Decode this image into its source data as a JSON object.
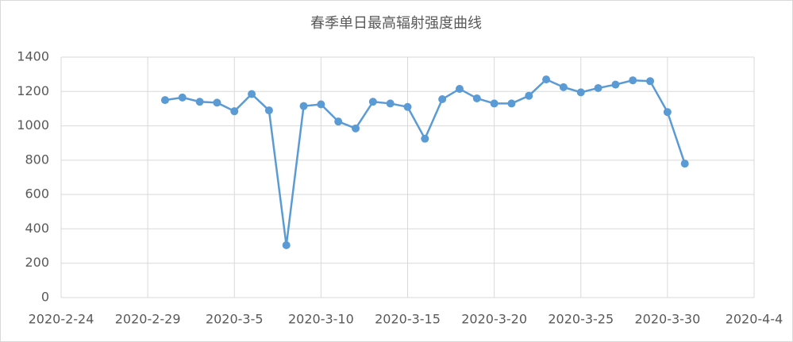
{
  "chart_data": {
    "type": "line",
    "title": "春季单日最高辐射强度曲线",
    "x": [
      "2020-3-1",
      "2020-3-2",
      "2020-3-3",
      "2020-3-4",
      "2020-3-5",
      "2020-3-6",
      "2020-3-7",
      "2020-3-8",
      "2020-3-9",
      "2020-3-10",
      "2020-3-11",
      "2020-3-12",
      "2020-3-13",
      "2020-3-14",
      "2020-3-15",
      "2020-3-16",
      "2020-3-17",
      "2020-3-18",
      "2020-3-19",
      "2020-3-20",
      "2020-3-21",
      "2020-3-22",
      "2020-3-23",
      "2020-3-24",
      "2020-3-25",
      "2020-3-26",
      "2020-3-27",
      "2020-3-28",
      "2020-3-29",
      "2020-3-30",
      "2020-3-31"
    ],
    "values": [
      1150,
      1165,
      1140,
      1135,
      1085,
      1185,
      1090,
      305,
      1115,
      1125,
      1025,
      985,
      1140,
      1130,
      1110,
      925,
      1155,
      1215,
      1160,
      1130,
      1130,
      1175,
      1270,
      1225,
      1195,
      1220,
      1240,
      1265,
      1260,
      1080,
      780
    ],
    "color": "#5b9bd5",
    "xlim": [
      "2020-2-24",
      "2020-4-4"
    ],
    "xticks": [
      "2020-2-24",
      "2020-2-29",
      "2020-3-5",
      "2020-3-10",
      "2020-3-15",
      "2020-3-20",
      "2020-3-25",
      "2020-3-30",
      "2020-4-4"
    ],
    "ylim": [
      0,
      1400
    ],
    "yticks": [
      0,
      200,
      400,
      600,
      800,
      1000,
      1200,
      1400
    ],
    "grid": true
  }
}
